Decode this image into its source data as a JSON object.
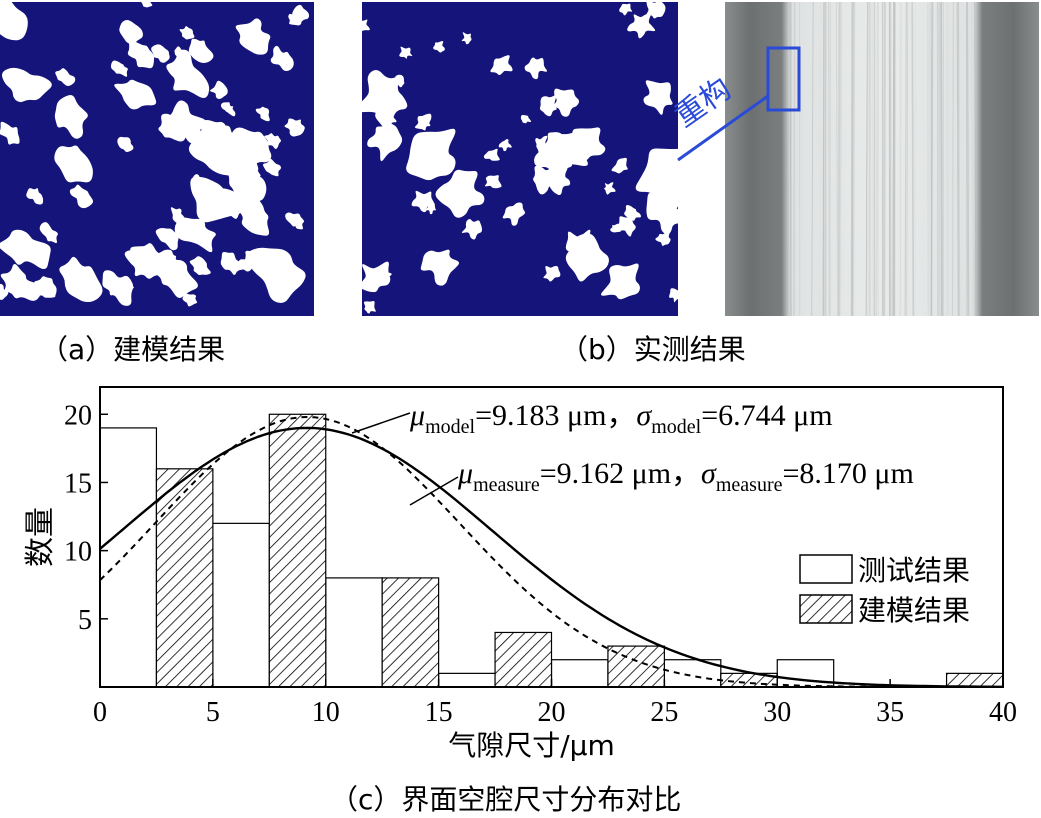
{
  "panels": {
    "a": {
      "caption": "（a）建模结果"
    },
    "b": {
      "caption": "（b）实测结果",
      "annotation": "重构"
    }
  },
  "colors": {
    "pore_background": "#14147a",
    "pore": "#ffffff",
    "annotation": "#2a4ad8",
    "tomo_dark": "#6f7272",
    "tomo_light": "#e6e8e8"
  },
  "chart_data": {
    "type": "bar",
    "caption": "（c）界面空腔尺寸分布对比",
    "xlabel": "气隙尺寸/μm",
    "ylabel": "数量",
    "xlim": [
      0,
      40
    ],
    "ylim": [
      0,
      22
    ],
    "xticks": [
      0,
      5,
      10,
      15,
      20,
      25,
      30,
      35,
      40
    ],
    "yticks": [
      5,
      10,
      15,
      20
    ],
    "bin_width": 2.5,
    "legend_placement": "right",
    "series": [
      {
        "name": "测试结果",
        "style": "open",
        "bin_starts": [
          0,
          5,
          10,
          15,
          20,
          25,
          30,
          35
        ],
        "values": [
          19,
          12,
          8,
          1,
          2,
          2,
          2,
          0
        ]
      },
      {
        "name": "建模结果",
        "style": "hatched",
        "bin_starts": [
          2.5,
          7.5,
          12.5,
          17.5,
          22.5,
          27.5,
          32.5,
          37.5
        ],
        "values": [
          16,
          20,
          8,
          4,
          3,
          1,
          0,
          1
        ]
      }
    ],
    "curves": [
      {
        "label_mu": "μ",
        "sub_mu": "model",
        "mu_value": "=9.183 μm，",
        "label_sigma": "σ",
        "sub_sigma": "model",
        "sigma_value": "=6.744 μm",
        "mean": 9.183,
        "std": 6.744,
        "peak": 19.8,
        "style": "dashed"
      },
      {
        "label_mu": "μ",
        "sub_mu": "measure",
        "mu_value": "=9.162 μm，",
        "label_sigma": "σ",
        "sub_sigma": "measure",
        "sigma_value": "=8.170 μm",
        "mean": 9.162,
        "std": 8.17,
        "peak": 19.0,
        "style": "solid"
      }
    ]
  }
}
